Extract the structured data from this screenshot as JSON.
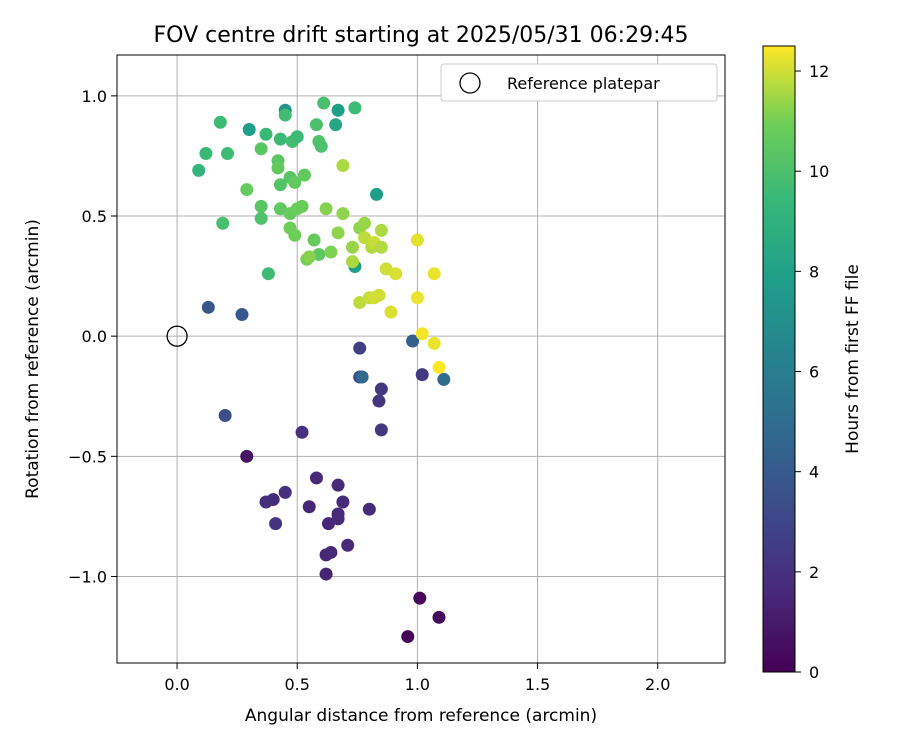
{
  "chart_data": {
    "type": "scatter",
    "title": "FOV centre drift starting at 2025/05/31 06:29:45",
    "xlabel": "Angular distance from reference (arcmin)",
    "ylabel": "Rotation from reference (arcmin)",
    "xlim": [
      -0.25,
      2.28
    ],
    "ylim": [
      -1.36,
      1.17
    ],
    "xticks": [
      0.0,
      0.5,
      1.0,
      1.5,
      2.0
    ],
    "xtick_labels": [
      "0.0",
      "0.5",
      "1.0",
      "1.5",
      "2.0"
    ],
    "yticks": [
      -1.0,
      -0.5,
      0.0,
      0.5,
      1.0
    ],
    "ytick_labels": [
      "−1.0",
      "−0.5",
      "0.0",
      "0.5",
      "1.0"
    ],
    "grid": true,
    "legend": {
      "position": "top-right",
      "label": "Reference platepar"
    },
    "reference_point": {
      "x": 0.0,
      "y": 0.0
    },
    "colorbar": {
      "label": "Hours from first FF file",
      "range": [
        0,
        12.5
      ],
      "ticks": [
        0,
        2,
        4,
        6,
        8,
        10,
        12
      ],
      "colormap": "viridis"
    },
    "points": [
      {
        "x": 0.96,
        "y": -1.25,
        "h": 0.2
      },
      {
        "x": 1.01,
        "y": -1.09,
        "h": 0.3
      },
      {
        "x": 1.09,
        "y": -1.17,
        "h": 0.4
      },
      {
        "x": 0.29,
        "y": -0.5,
        "h": 0.7
      },
      {
        "x": 0.62,
        "y": -0.99,
        "h": 1.4
      },
      {
        "x": 0.62,
        "y": -0.91,
        "h": 1.5
      },
      {
        "x": 0.64,
        "y": -0.9,
        "h": 1.6
      },
      {
        "x": 0.71,
        "y": -0.87,
        "h": 1.7
      },
      {
        "x": 0.63,
        "y": -0.78,
        "h": 1.5
      },
      {
        "x": 0.67,
        "y": -0.76,
        "h": 1.6
      },
      {
        "x": 0.67,
        "y": -0.74,
        "h": 1.7
      },
      {
        "x": 0.55,
        "y": -0.71,
        "h": 1.5
      },
      {
        "x": 0.69,
        "y": -0.69,
        "h": 1.8
      },
      {
        "x": 0.8,
        "y": -0.72,
        "h": 1.7
      },
      {
        "x": 0.58,
        "y": -0.59,
        "h": 1.6
      },
      {
        "x": 0.67,
        "y": -0.62,
        "h": 1.7
      },
      {
        "x": 0.37,
        "y": -0.69,
        "h": 1.9
      },
      {
        "x": 0.4,
        "y": -0.68,
        "h": 1.8
      },
      {
        "x": 0.45,
        "y": -0.65,
        "h": 2.0
      },
      {
        "x": 0.41,
        "y": -0.78,
        "h": 2.1
      },
      {
        "x": 0.52,
        "y": -0.4,
        "h": 2.0
      },
      {
        "x": 0.84,
        "y": -0.27,
        "h": 2.2
      },
      {
        "x": 0.85,
        "y": -0.39,
        "h": 2.3
      },
      {
        "x": 0.85,
        "y": -0.22,
        "h": 2.3
      },
      {
        "x": 1.02,
        "y": -0.16,
        "h": 2.4
      },
      {
        "x": 0.76,
        "y": -0.05,
        "h": 2.6
      },
      {
        "x": 0.76,
        "y": -0.17,
        "h": 3.0
      },
      {
        "x": 0.2,
        "y": -0.33,
        "h": 3.4
      },
      {
        "x": 0.27,
        "y": 0.09,
        "h": 3.9
      },
      {
        "x": 0.13,
        "y": 0.12,
        "h": 3.8
      },
      {
        "x": 0.98,
        "y": -0.02,
        "h": 4.3
      },
      {
        "x": 0.77,
        "y": -0.17,
        "h": 4.8
      },
      {
        "x": 1.11,
        "y": -0.18,
        "h": 4.9
      },
      {
        "x": 0.74,
        "y": 0.29,
        "h": 7.8
      },
      {
        "x": 0.3,
        "y": 0.86,
        "h": 7.8
      },
      {
        "x": 0.83,
        "y": 0.59,
        "h": 7.9
      },
      {
        "x": 0.45,
        "y": 0.94,
        "h": 7.2
      },
      {
        "x": 0.67,
        "y": 0.94,
        "h": 7.9
      },
      {
        "x": 0.66,
        "y": 0.88,
        "h": 8.3
      },
      {
        "x": 0.09,
        "y": 0.69,
        "h": 9.2
      },
      {
        "x": 0.12,
        "y": 0.76,
        "h": 9.5
      },
      {
        "x": 0.18,
        "y": 0.89,
        "h": 9.6
      },
      {
        "x": 0.21,
        "y": 0.76,
        "h": 9.6
      },
      {
        "x": 0.38,
        "y": 0.26,
        "h": 9.6
      },
      {
        "x": 0.19,
        "y": 0.47,
        "h": 9.9
      },
      {
        "x": 0.37,
        "y": 0.84,
        "h": 9.5
      },
      {
        "x": 0.43,
        "y": 0.82,
        "h": 9.5
      },
      {
        "x": 0.48,
        "y": 0.81,
        "h": 9.8
      },
      {
        "x": 0.5,
        "y": 0.83,
        "h": 9.6
      },
      {
        "x": 0.45,
        "y": 0.92,
        "h": 9.7
      },
      {
        "x": 0.61,
        "y": 0.97,
        "h": 9.9
      },
      {
        "x": 0.74,
        "y": 0.95,
        "h": 9.6
      },
      {
        "x": 0.58,
        "y": 0.88,
        "h": 10.0
      },
      {
        "x": 0.59,
        "y": 0.81,
        "h": 10.1
      },
      {
        "x": 0.6,
        "y": 0.79,
        "h": 10.0
      },
      {
        "x": 0.35,
        "y": 0.78,
        "h": 10.4
      },
      {
        "x": 0.42,
        "y": 0.73,
        "h": 10.4
      },
      {
        "x": 0.42,
        "y": 0.7,
        "h": 10.6
      },
      {
        "x": 0.47,
        "y": 0.66,
        "h": 10.3
      },
      {
        "x": 0.53,
        "y": 0.67,
        "h": 10.6
      },
      {
        "x": 0.43,
        "y": 0.63,
        "h": 10.2
      },
      {
        "x": 0.49,
        "y": 0.64,
        "h": 10.6
      },
      {
        "x": 0.29,
        "y": 0.61,
        "h": 10.7
      },
      {
        "x": 0.35,
        "y": 0.54,
        "h": 10.4
      },
      {
        "x": 0.35,
        "y": 0.49,
        "h": 10.1
      },
      {
        "x": 0.43,
        "y": 0.53,
        "h": 10.5
      },
      {
        "x": 0.47,
        "y": 0.51,
        "h": 10.7
      },
      {
        "x": 0.5,
        "y": 0.53,
        "h": 10.8
      },
      {
        "x": 0.52,
        "y": 0.54,
        "h": 10.8
      },
      {
        "x": 0.47,
        "y": 0.45,
        "h": 10.9
      },
      {
        "x": 0.49,
        "y": 0.42,
        "h": 10.9
      },
      {
        "x": 0.57,
        "y": 0.4,
        "h": 10.7
      },
      {
        "x": 0.59,
        "y": 0.34,
        "h": 10.5
      },
      {
        "x": 0.54,
        "y": 0.32,
        "h": 11.0
      },
      {
        "x": 0.55,
        "y": 0.33,
        "h": 11.2
      },
      {
        "x": 0.64,
        "y": 0.35,
        "h": 11.1
      },
      {
        "x": 0.67,
        "y": 0.43,
        "h": 11.3
      },
      {
        "x": 0.62,
        "y": 0.53,
        "h": 11.2
      },
      {
        "x": 0.69,
        "y": 0.51,
        "h": 11.3
      },
      {
        "x": 0.69,
        "y": 0.71,
        "h": 11.6
      },
      {
        "x": 0.73,
        "y": 0.37,
        "h": 11.4
      },
      {
        "x": 0.73,
        "y": 0.31,
        "h": 11.6
      },
      {
        "x": 0.76,
        "y": 0.45,
        "h": 11.3
      },
      {
        "x": 0.78,
        "y": 0.47,
        "h": 11.4
      },
      {
        "x": 0.78,
        "y": 0.41,
        "h": 11.8
      },
      {
        "x": 0.81,
        "y": 0.37,
        "h": 11.7
      },
      {
        "x": 0.82,
        "y": 0.39,
        "h": 11.9
      },
      {
        "x": 0.85,
        "y": 0.44,
        "h": 11.6
      },
      {
        "x": 0.85,
        "y": 0.37,
        "h": 11.7
      },
      {
        "x": 0.76,
        "y": 0.14,
        "h": 11.8
      },
      {
        "x": 0.8,
        "y": 0.16,
        "h": 11.9
      },
      {
        "x": 0.82,
        "y": 0.16,
        "h": 12.0
      },
      {
        "x": 0.84,
        "y": 0.17,
        "h": 12.0
      },
      {
        "x": 0.87,
        "y": 0.28,
        "h": 12.0
      },
      {
        "x": 0.91,
        "y": 0.26,
        "h": 12.1
      },
      {
        "x": 1.0,
        "y": 0.4,
        "h": 12.2
      },
      {
        "x": 1.07,
        "y": 0.26,
        "h": 12.3
      },
      {
        "x": 1.0,
        "y": 0.16,
        "h": 12.3
      },
      {
        "x": 0.89,
        "y": 0.1,
        "h": 12.1
      },
      {
        "x": 1.02,
        "y": 0.01,
        "h": 12.4
      },
      {
        "x": 1.07,
        "y": -0.03,
        "h": 12.3
      },
      {
        "x": 1.09,
        "y": -0.13,
        "h": 12.5
      }
    ]
  }
}
